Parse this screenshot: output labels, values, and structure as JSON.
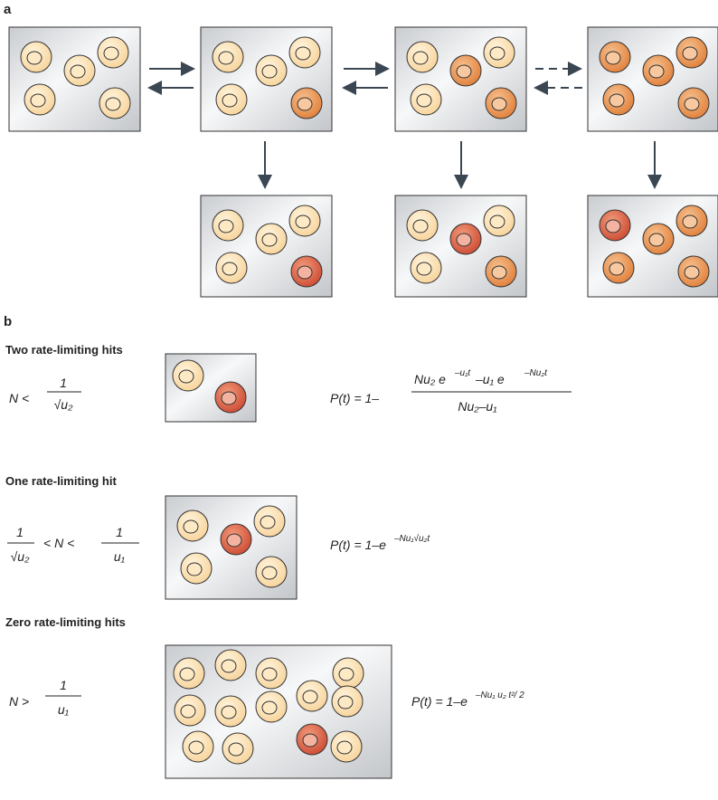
{
  "panel_a": {
    "label": "a"
  },
  "panel_b": {
    "label": "b",
    "sections": [
      {
        "title": "Two rate-limiting hits",
        "condition": {
          "left": "N <",
          "frac_num": "1",
          "frac_den": "√u₂"
        },
        "formula": {
          "lhs": "P(t) = 1–",
          "num_1": "Nu₂ e",
          "num_sup_1": "–u₁t",
          "num_2": " –u₁ e",
          "num_sup_2": "–Nu₂t",
          "den": "Nu₂–u₁"
        }
      },
      {
        "title": "One rate-limiting hit",
        "condition": {
          "frac1_num": "1",
          "frac1_den": "√u₂",
          "middle": "< N <",
          "frac2_num": "1",
          "frac2_den": "u₁"
        },
        "formula": {
          "base": "P(t) = 1–e",
          "sup": "–Nu₁√u₂t"
        }
      },
      {
        "title": "Zero rate-limiting hits",
        "condition": {
          "left": "N >",
          "frac_num": "1",
          "frac_den": "u₁"
        },
        "formula": {
          "base": "P(t) = 1–e",
          "sup": "–Nu₁ u₂ t²/ 2"
        }
      }
    ]
  }
}
